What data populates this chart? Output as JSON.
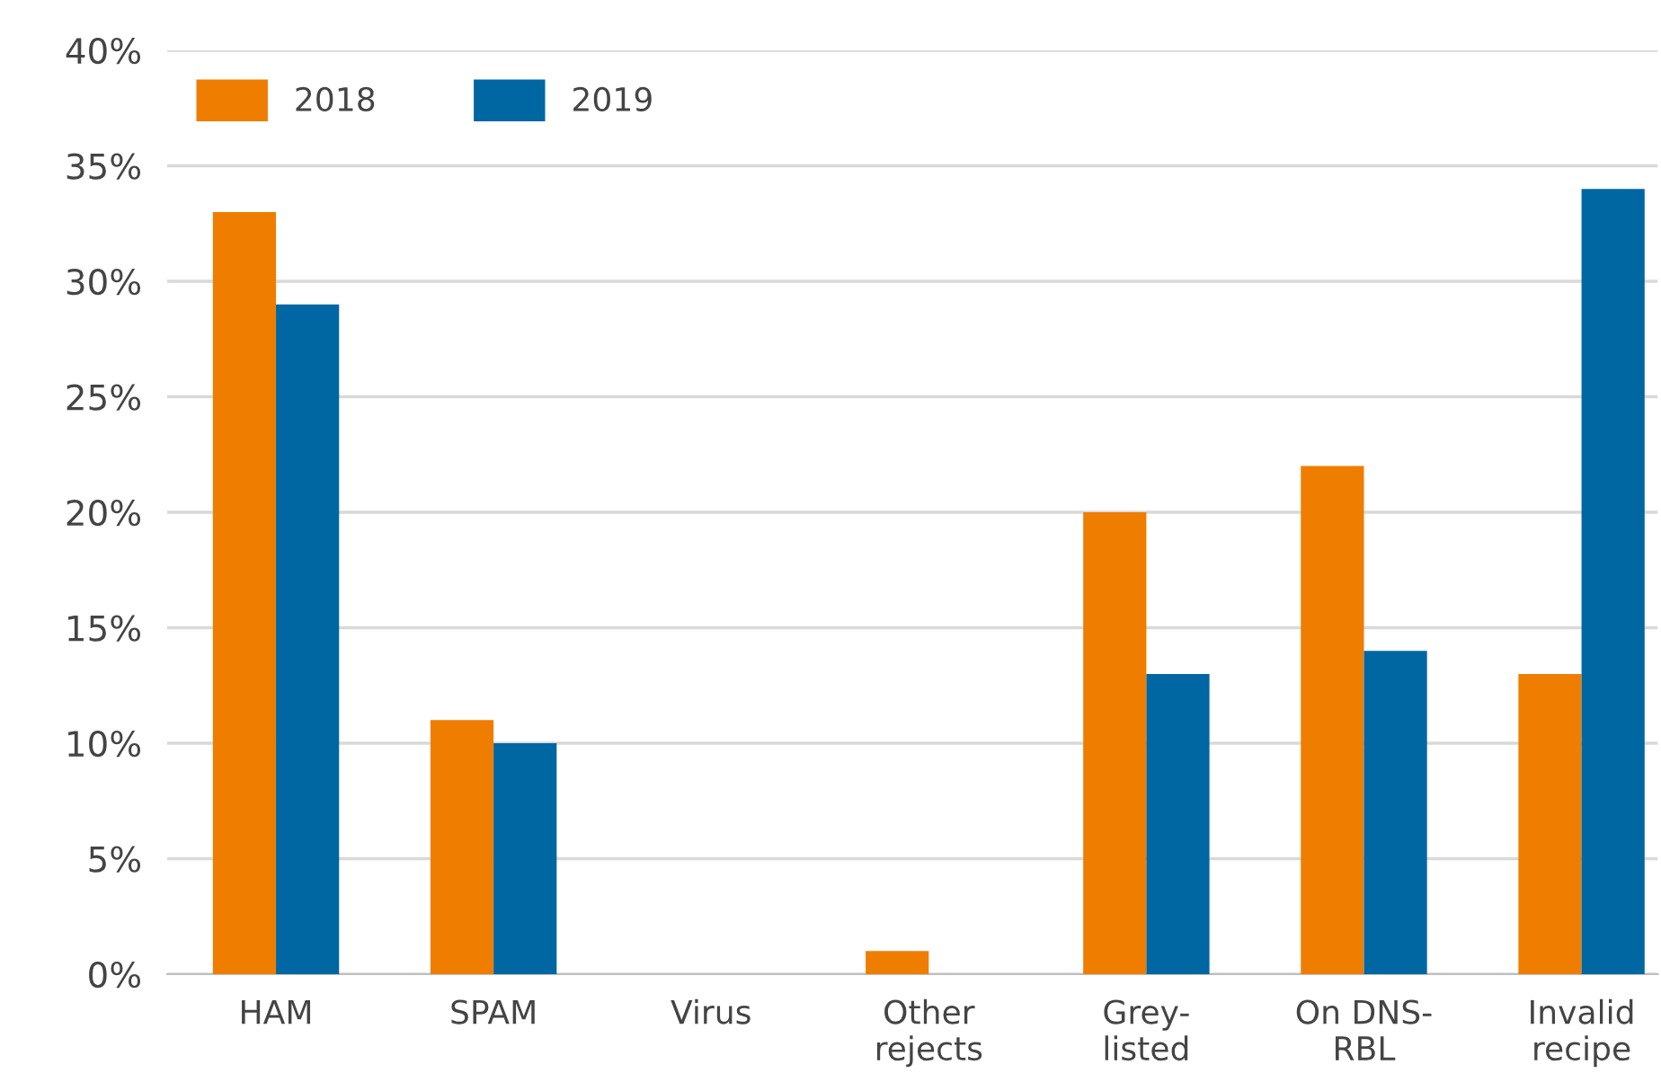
{
  "chart_data": {
    "type": "bar",
    "categories": [
      "HAM",
      "SPAM",
      "Virus",
      "Other\nrejects",
      "Grey-\nlisted",
      "On DNS-\nRBL",
      "Invalid\nrecipe"
    ],
    "series": [
      {
        "name": "2018",
        "color": "#ef7d00",
        "values": [
          33,
          11,
          0,
          1,
          20,
          22,
          13
        ]
      },
      {
        "name": "2019",
        "color": "#0067a3",
        "values": [
          29,
          10,
          0,
          0,
          13,
          14,
          34
        ]
      }
    ],
    "ylim": [
      0,
      40
    ],
    "yticks": [
      {
        "value": 0,
        "label": "0%"
      },
      {
        "value": 5,
        "label": "5%"
      },
      {
        "value": 10,
        "label": "10%"
      },
      {
        "value": 15,
        "label": "15%"
      },
      {
        "value": 20,
        "label": "20%"
      },
      {
        "value": 25,
        "label": "25%"
      },
      {
        "value": 30,
        "label": "30%"
      },
      {
        "value": 35,
        "label": "35%"
      },
      {
        "value": 40,
        "label": "40%"
      }
    ],
    "grid": "y",
    "legend": "top left"
  }
}
